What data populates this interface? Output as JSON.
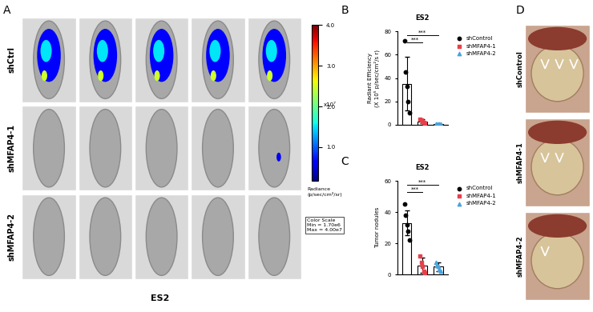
{
  "panel_labels": [
    "A",
    "B",
    "C",
    "D"
  ],
  "imaging": {
    "cell_line": "ES2",
    "groups": [
      "shCtrl",
      "shMFAP4-1",
      "shMFAP4-2"
    ],
    "colorbar": {
      "range": [
        0.17,
        4.0
      ],
      "ticks": [
        {
          "value": 1.0,
          "label": "1.0"
        },
        {
          "value": 2.0,
          "label": "2.0"
        },
        {
          "value": 3.0,
          "label": "3.0"
        },
        {
          "value": 4.0,
          "label": "4.0"
        }
      ],
      "multiplier": "x10⁷",
      "label": "Radiance\n(p/sec/cm²/sr)",
      "scale_text": "Color Scale\nMin = 1.70e6\nMax = 4.00e7"
    }
  },
  "chart_data": [
    {
      "type": "bar",
      "title": "ES2",
      "y_label": "Radiant Efficiency\n(X 10⁵ p/sec/cm²/s r)",
      "ylim": [
        0,
        80
      ],
      "yticks": [
        0,
        20,
        40,
        60,
        80
      ],
      "tick_labels": "y",
      "legend": "upper left",
      "series": [
        {
          "name": "shControl",
          "color": "#000000",
          "marker": "circle",
          "mean": 35,
          "sd": 23,
          "values": [
            72,
            45,
            33,
            20,
            10
          ]
        },
        {
          "name": "shMFAP4-1",
          "color": "#e8404a",
          "marker": "square",
          "mean": 3,
          "sd": 1.5,
          "values": [
            5,
            4,
            3,
            2,
            1.5
          ]
        },
        {
          "name": "shMFAP4-2",
          "color": "#4aa3df",
          "marker": "triangle",
          "mean": 0.8,
          "sd": 0.3,
          "values": [
            1,
            0.8,
            0.7,
            0.6,
            0.5
          ]
        }
      ],
      "annotations": [
        {
          "text": "***",
          "from": 0,
          "to": 1
        },
        {
          "text": "***",
          "from": 0,
          "to": 2
        }
      ]
    },
    {
      "type": "bar",
      "title": "ES2",
      "y_label": "Tumor nodules",
      "ylim": [
        0,
        60
      ],
      "yticks": [
        0,
        20,
        40,
        60
      ],
      "tick_labels": "y",
      "legend": "upper left",
      "series": [
        {
          "name": "shControl",
          "color": "#000000",
          "marker": "circle",
          "mean": 33,
          "sd": 8,
          "values": [
            45,
            38,
            32,
            28,
            22
          ]
        },
        {
          "name": "shMFAP4-1",
          "color": "#e8404a",
          "marker": "square",
          "mean": 6,
          "sd": 5,
          "values": [
            12,
            8,
            5,
            2,
            1
          ]
        },
        {
          "name": "shMFAP4-2",
          "color": "#4aa3df",
          "marker": "triangle",
          "mean": 5,
          "sd": 3,
          "values": [
            8,
            6,
            5,
            3,
            2
          ]
        }
      ],
      "annotations": [
        {
          "text": "***",
          "from": 0,
          "to": 1
        },
        {
          "text": "***",
          "from": 0,
          "to": 2
        }
      ]
    }
  ],
  "photos": {
    "groups": [
      "shControl",
      "shMFAP4-1",
      "shMFAP4-2"
    ]
  }
}
